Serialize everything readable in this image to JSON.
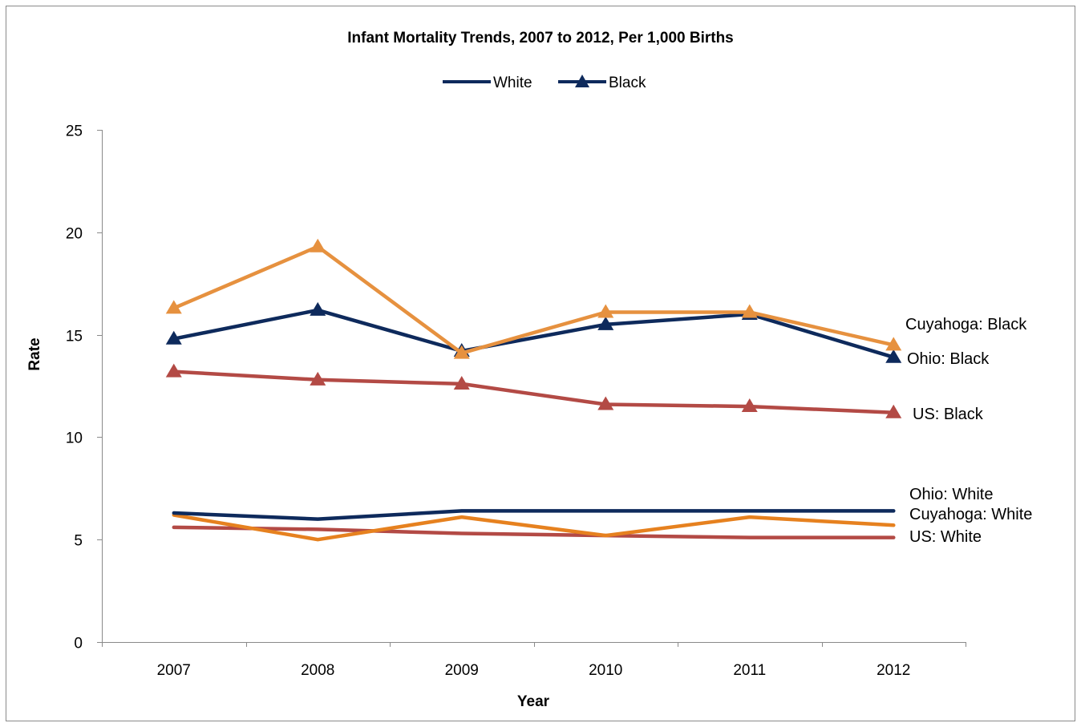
{
  "chart_data": {
    "type": "line",
    "title": "Infant Mortality Trends, 2007 to 2012, Per 1,000 Births",
    "xlabel": "Year",
    "ylabel": "Rate",
    "categories": [
      "2007",
      "2008",
      "2009",
      "2010",
      "2011",
      "2012"
    ],
    "ylim": [
      0,
      25
    ],
    "yticks": [
      0,
      5,
      10,
      15,
      20,
      25
    ],
    "grid": false,
    "legend": {
      "placement": "top-center",
      "entries": [
        {
          "label": "White",
          "marker": "none",
          "color": "#0E2A5C"
        },
        {
          "label": "Black",
          "marker": "triangle",
          "color": "#0E2A5C"
        }
      ]
    },
    "series": [
      {
        "name": "Cuyahoga: Black",
        "color": "#E6913F",
        "marker": "triangle",
        "values": [
          16.3,
          19.3,
          14.1,
          16.1,
          16.1,
          14.5
        ]
      },
      {
        "name": "Ohio: Black",
        "color": "#0E2A5C",
        "marker": "triangle",
        "values": [
          14.8,
          16.2,
          14.2,
          15.5,
          16.0,
          13.9
        ]
      },
      {
        "name": "US: Black",
        "color": "#B34A45",
        "marker": "triangle",
        "values": [
          13.2,
          12.8,
          12.6,
          11.6,
          11.5,
          11.2
        ]
      },
      {
        "name": "Ohio: White",
        "color": "#0E2A5C",
        "marker": "none",
        "values": [
          6.3,
          6.0,
          6.4,
          6.4,
          6.4,
          6.4
        ]
      },
      {
        "name": "Cuyahoga: White",
        "color": "#E6811F",
        "marker": "none",
        "values": [
          6.2,
          5.0,
          6.1,
          5.2,
          6.1,
          5.7
        ]
      },
      {
        "name": "US: White",
        "color": "#B34A45",
        "marker": "none",
        "values": [
          5.6,
          5.5,
          5.3,
          5.2,
          5.1,
          5.1
        ]
      }
    ]
  }
}
